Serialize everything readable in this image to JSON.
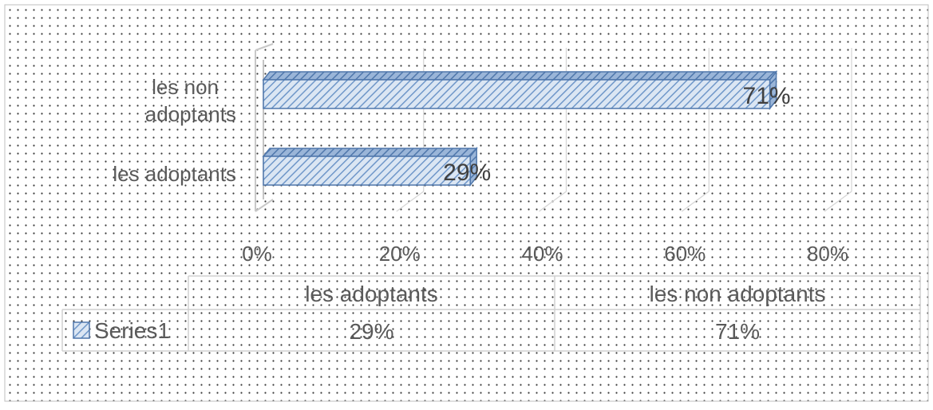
{
  "chart_data": {
    "type": "bar",
    "orientation": "horizontal",
    "three_d": true,
    "categories": [
      "les adoptants",
      "les non adoptants"
    ],
    "series": [
      {
        "name": "Series1",
        "values": [
          29,
          71
        ],
        "value_labels": [
          "29%",
          "71%"
        ],
        "color": "#4f81bd",
        "fill": "diagonal-hatch"
      }
    ],
    "x_axis": {
      "range": [
        0,
        80
      ],
      "ticks": [
        0,
        20,
        40,
        60,
        80
      ],
      "tick_labels": [
        "0%",
        "20%",
        "40%",
        "60%",
        "80%"
      ]
    },
    "grid": true,
    "data_table": {
      "headers": [
        "les adoptants",
        "les non adoptants"
      ],
      "rows": [
        {
          "label": "Series1",
          "values": [
            "29%",
            "71%"
          ]
        }
      ]
    },
    "background": "dotted",
    "category_label_lines": [
      [
        "les adoptants"
      ],
      [
        "les non",
        "adoptants"
      ]
    ]
  }
}
